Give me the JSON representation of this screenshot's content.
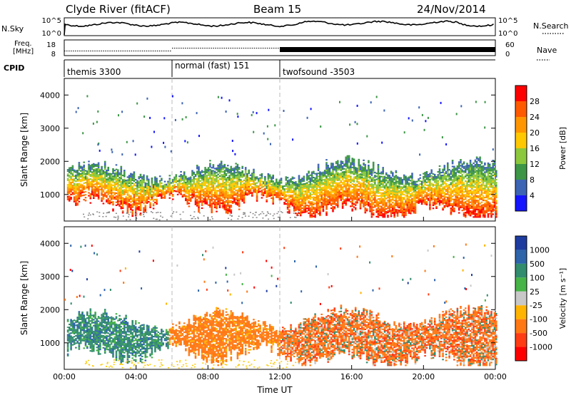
{
  "header": {
    "station": "Clyde River (fitACF)",
    "beam": "Beam 15",
    "date": "24/Nov/2014"
  },
  "nsky_panel": {
    "left_label": "N.Sky",
    "left_ticks": [
      "10^5",
      "10^0"
    ],
    "right_label": "N.Search",
    "right_ticks": [
      "10^5",
      "10^0"
    ]
  },
  "freq_panel": {
    "left_label_line1": "Freq.",
    "left_label_line2": "[MHz]",
    "left_ticks": [
      "18",
      "8"
    ],
    "right_label": "Nave",
    "right_ticks": [
      "60",
      "0"
    ]
  },
  "cpid_panel": {
    "label": "CPID",
    "segments": [
      {
        "name": "themis 3300",
        "start": 0,
        "end": 6
      },
      {
        "name": "normal (fast) 151",
        "start": 6,
        "end": 12
      },
      {
        "name": "twofsound -3503",
        "start": 12,
        "end": 24
      }
    ]
  },
  "chart_data": [
    {
      "type": "heatmap",
      "name": "power",
      "ylabel": "Slant Range [km]",
      "yticks": [
        "1000",
        "2000",
        "3000",
        "4000"
      ],
      "ylim": [
        200,
        4500
      ],
      "xlim": [
        0,
        24
      ],
      "colorbar": {
        "label": "Power [dB]",
        "ticks": [
          "28",
          "24",
          "20",
          "16",
          "12",
          "8",
          "4"
        ],
        "colors": [
          "#ff0000",
          "#ff5a00",
          "#ff9600",
          "#ffc800",
          "#8cc83c",
          "#3c9646",
          "#3c64b4",
          "#1414ff"
        ]
      }
    },
    {
      "type": "heatmap",
      "name": "velocity",
      "ylabel": "Slant Range [km]",
      "yticks": [
        "1000",
        "2000",
        "3000",
        "4000"
      ],
      "ylim": [
        200,
        4500
      ],
      "xlim": [
        0,
        24
      ],
      "xlabel": "Time UT",
      "xticks": [
        "00:00",
        "04:00",
        "08:00",
        "12:00",
        "16:00",
        "20:00",
        "00:00"
      ],
      "colorbar": {
        "label": "Velocity [m s⁻¹]",
        "ticks": [
          "1000",
          "500",
          "100",
          "25",
          "-25",
          "-100",
          "-500",
          "-1000"
        ],
        "colors": [
          "#1e3ca0",
          "#2d64aa",
          "#328c6e",
          "#46b446",
          "#c8c8c8",
          "#ffb400",
          "#ff7814",
          "#ff3c14",
          "#ff0000"
        ]
      }
    }
  ]
}
